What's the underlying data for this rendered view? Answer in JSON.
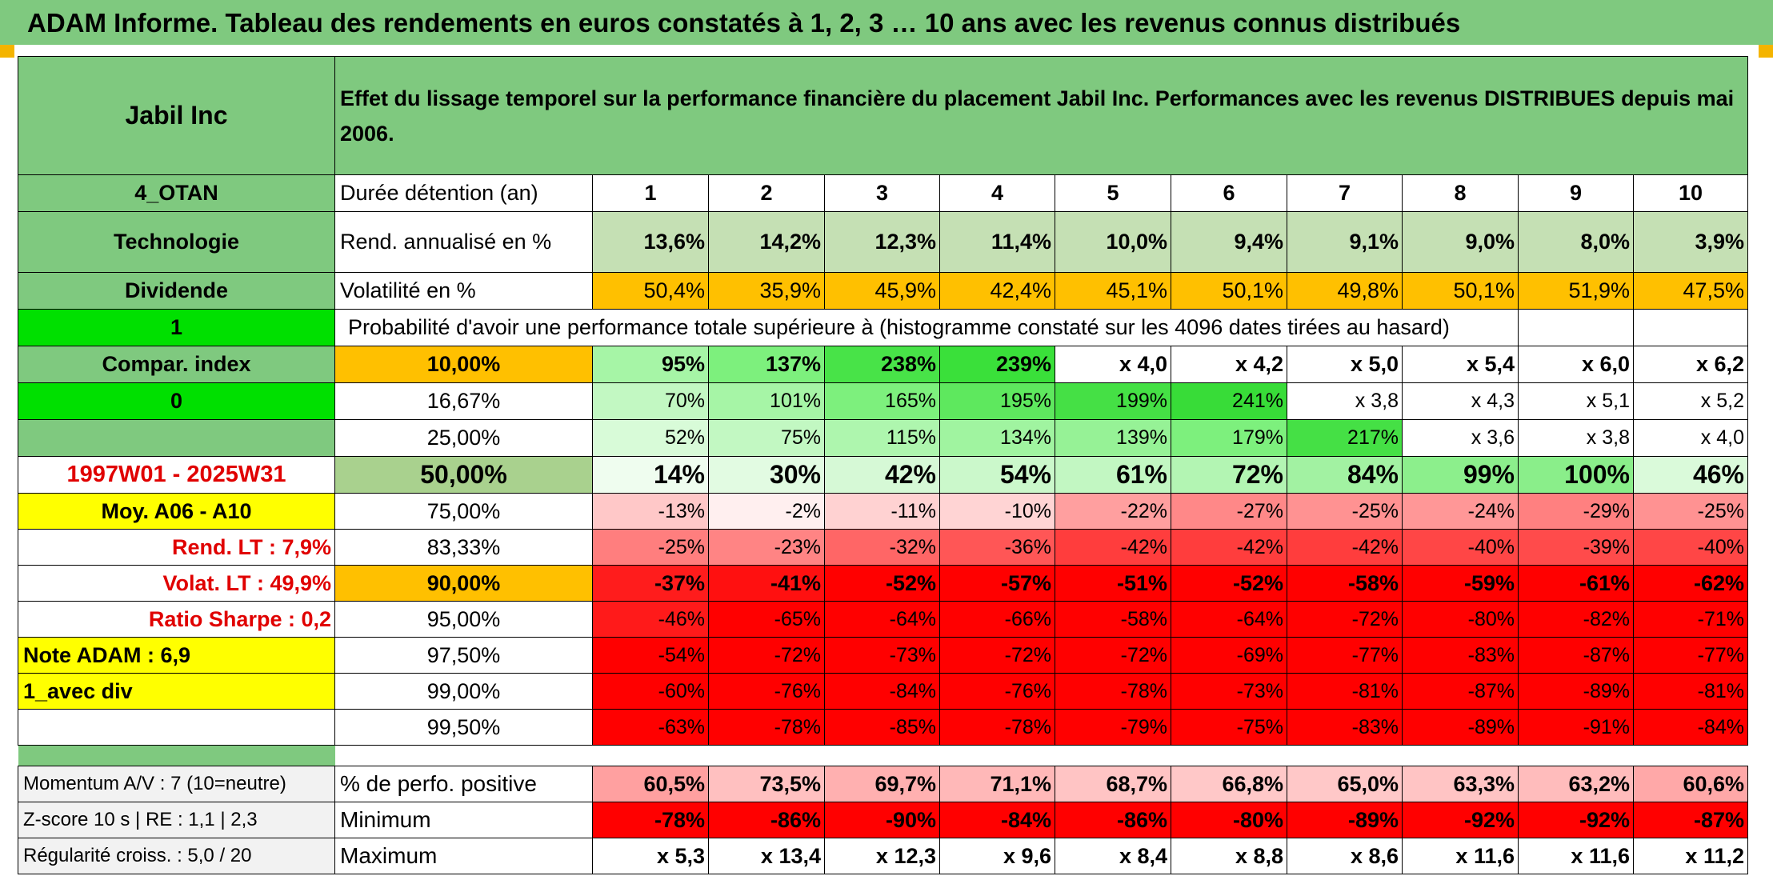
{
  "title": "ADAM Informe. Tableau des rendements en euros constatés à 1, 2, 3 … 10 ans avec les revenus connus distribués",
  "left": {
    "name": "Jabil Inc",
    "code": "4_OTAN",
    "sector": "Technologie",
    "dividend_label": "Dividende",
    "dividend_value": "1",
    "compar_label": "Compar. index",
    "compar_value": "0",
    "period": "1997W01 - 2025W31",
    "moy": "Moy. A06 - A10",
    "rend_lt": "Rend. LT :   7,9%",
    "volat_lt": "Volat. LT :   49,9%",
    "sharpe": "Ratio Sharpe :    0,2",
    "note": "Note ADAM : 6,9",
    "avec_div": "1_avec div",
    "momentum": "Momentum A/V : 7 (10=neutre)",
    "zscore": "Z-score 10 s | RE : 1,1 | 2,3",
    "regularite": "Régularité croiss. : 5,0 / 20"
  },
  "description": "Effet du lissage temporel sur la performance financière du placement Jabil Inc. Performances avec les revenus DISTRIBUES depuis mai 2006.",
  "duration_label": "Durée détention (an)",
  "years": [
    "1",
    "2",
    "3",
    "4",
    "5",
    "6",
    "7",
    "8",
    "9",
    "10"
  ],
  "rend_label": "Rend. annualisé en %",
  "rend": [
    "13,6%",
    "14,2%",
    "12,3%",
    "11,4%",
    "10,0%",
    "9,4%",
    "9,1%",
    "9,0%",
    "8,0%",
    "3,9%"
  ],
  "vol_label": "Volatilité en %",
  "vol": [
    "50,4%",
    "35,9%",
    "45,9%",
    "42,4%",
    "45,1%",
    "50,1%",
    "49,8%",
    "50,1%",
    "51,9%",
    "47,5%"
  ],
  "prob_label": "Probabilité d'avoir une performance totale supérieure à (histogramme constaté sur les 4096 dates tirées au hasard)",
  "quantiles": [
    {
      "label": "10,00%",
      "values": [
        "95%",
        "137%",
        "238%",
        "239%",
        "x 4,0",
        "x 4,2",
        "x 5,0",
        "x 5,4",
        "x 6,0",
        "x 6,2"
      ]
    },
    {
      "label": "16,67%",
      "values": [
        "70%",
        "101%",
        "165%",
        "195%",
        "199%",
        "241%",
        "x 3,8",
        "x 4,3",
        "x 5,1",
        "x 5,2"
      ]
    },
    {
      "label": "25,00%",
      "values": [
        "52%",
        "75%",
        "115%",
        "134%",
        "139%",
        "179%",
        "217%",
        "x 3,6",
        "x 3,8",
        "x 4,0"
      ]
    },
    {
      "label": "50,00%",
      "values": [
        "14%",
        "30%",
        "42%",
        "54%",
        "61%",
        "72%",
        "84%",
        "99%",
        "100%",
        "46%"
      ]
    },
    {
      "label": "75,00%",
      "values": [
        "-13%",
        "-2%",
        "-11%",
        "-10%",
        "-22%",
        "-27%",
        "-25%",
        "-24%",
        "-29%",
        "-25%"
      ]
    },
    {
      "label": "83,33%",
      "values": [
        "-25%",
        "-23%",
        "-32%",
        "-36%",
        "-42%",
        "-42%",
        "-42%",
        "-40%",
        "-39%",
        "-40%"
      ]
    },
    {
      "label": "90,00%",
      "values": [
        "-37%",
        "-41%",
        "-52%",
        "-57%",
        "-51%",
        "-52%",
        "-58%",
        "-59%",
        "-61%",
        "-62%"
      ]
    },
    {
      "label": "95,00%",
      "values": [
        "-46%",
        "-65%",
        "-64%",
        "-66%",
        "-58%",
        "-64%",
        "-72%",
        "-80%",
        "-82%",
        "-71%"
      ]
    },
    {
      "label": "97,50%",
      "values": [
        "-54%",
        "-72%",
        "-73%",
        "-72%",
        "-72%",
        "-69%",
        "-77%",
        "-83%",
        "-87%",
        "-77%"
      ]
    },
    {
      "label": "99,00%",
      "values": [
        "-60%",
        "-76%",
        "-84%",
        "-76%",
        "-78%",
        "-73%",
        "-81%",
        "-87%",
        "-89%",
        "-81%"
      ]
    },
    {
      "label": "99,50%",
      "values": [
        "-63%",
        "-78%",
        "-85%",
        "-78%",
        "-79%",
        "-75%",
        "-83%",
        "-89%",
        "-91%",
        "-84%"
      ]
    }
  ],
  "colors": {
    "quantiles": [
      [
        "#a6f5a6",
        "#7df07d",
        "#48e348",
        "#3ae03a",
        "#ffffff",
        "#ffffff",
        "#ffffff",
        "#ffffff",
        "#ffffff",
        "#ffffff"
      ],
      [
        "#c2f8c2",
        "#a6f5a6",
        "#7df07d",
        "#5ee85e",
        "#45e045",
        "#38dc38",
        "#ffffff",
        "#ffffff",
        "#ffffff",
        "#ffffff"
      ],
      [
        "#d8fbd8",
        "#c2f8c2",
        "#aef6ae",
        "#a0f4a0",
        "#96f296",
        "#7df07d",
        "#45e045",
        "#ffffff",
        "#ffffff",
        "#ffffff"
      ],
      [
        "#effdef",
        "#e2fbe2",
        "#d6f9d6",
        "#cbf8cb",
        "#c2f7c2",
        "#b3f5b3",
        "#a2f2a2",
        "#8cef8c",
        "#8aee8a",
        "#dafada"
      ],
      [
        "#ffc8c8",
        "#ffefef",
        "#ffd2d2",
        "#ffd4d4",
        "#ff9f9f",
        "#ff8888",
        "#ff9292",
        "#ff9797",
        "#ff8080",
        "#ff9292"
      ],
      [
        "#ff7e7e",
        "#ff8484",
        "#ff6666",
        "#ff5656",
        "#ff3d3d",
        "#ff3d3d",
        "#ff3d3d",
        "#ff4646",
        "#ff4b4b",
        "#ff4646"
      ],
      [
        "#ff1c1c",
        "#ff1010",
        "#ff0000",
        "#ff0000",
        "#ff0000",
        "#ff0000",
        "#ff0000",
        "#ff0000",
        "#ff0000",
        "#ff0000"
      ],
      [
        "#ff1a1a",
        "#ff0000",
        "#ff0000",
        "#ff0000",
        "#ff0000",
        "#ff0000",
        "#ff0000",
        "#ff0000",
        "#ff0000",
        "#ff0000"
      ],
      [
        "#ff0000",
        "#ff0000",
        "#ff0000",
        "#ff0000",
        "#ff0000",
        "#ff0000",
        "#ff0000",
        "#ff0000",
        "#ff0000",
        "#ff0000"
      ],
      [
        "#ff0000",
        "#ff0000",
        "#ff0000",
        "#ff0000",
        "#ff0000",
        "#ff0000",
        "#ff0000",
        "#ff0000",
        "#ff0000",
        "#ff0000"
      ],
      [
        "#ff0000",
        "#ff0000",
        "#ff0000",
        "#ff0000",
        "#ff0000",
        "#ff0000",
        "#ff0000",
        "#ff0000",
        "#ff0000",
        "#ff0000"
      ]
    ],
    "pos": [
      "#ffa0a0",
      "#ffc0c0",
      "#ffb0b0",
      "#ffb8b8",
      "#ffc4c4",
      "#ffc8c8",
      "#ffc8c8",
      "#ffc4c4",
      "#ffbcbc",
      "#ffa8a8"
    ],
    "min": [
      "#ff0000",
      "#ff0000",
      "#ff0000",
      "#ff0000",
      "#ff0000",
      "#ff0000",
      "#ff0000",
      "#ff0000",
      "#ff0000",
      "#ff0000"
    ]
  },
  "pos_label": "% de perfo. positive",
  "pos": [
    "60,5%",
    "73,5%",
    "69,7%",
    "71,1%",
    "68,7%",
    "66,8%",
    "65,0%",
    "63,3%",
    "63,2%",
    "60,6%"
  ],
  "min_label": "Minimum",
  "min": [
    "-78%",
    "-86%",
    "-90%",
    "-84%",
    "-86%",
    "-80%",
    "-89%",
    "-92%",
    "-92%",
    "-87%"
  ],
  "max_label": "Maximum",
  "max": [
    "x 5,3",
    "x 13,4",
    "x 12,3",
    "x 9,6",
    "x 8,4",
    "x 8,8",
    "x 8,6",
    "x 11,6",
    "x 11,6",
    "x 11,2"
  ]
}
